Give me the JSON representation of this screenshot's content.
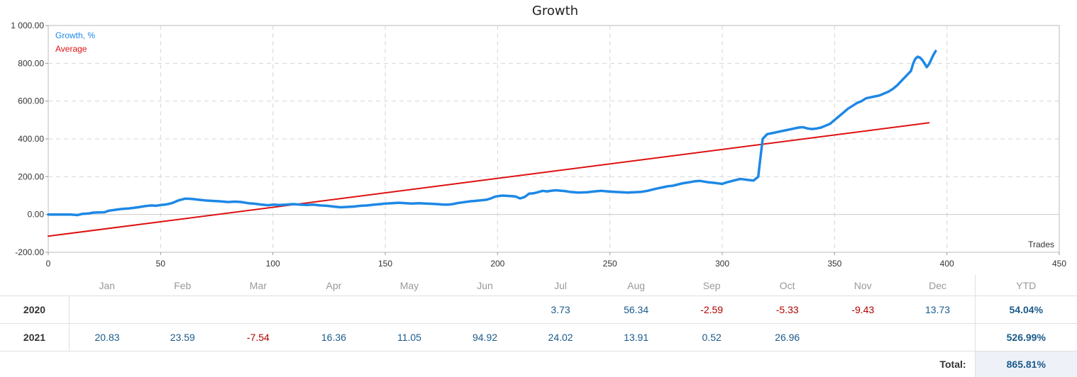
{
  "chart_data": {
    "type": "line",
    "title": "Growth",
    "xlabel": "Trades",
    "ylabel": "",
    "xlim": [
      0,
      450
    ],
    "ylim": [
      -200,
      1000
    ],
    "x_ticks": [
      0,
      50,
      100,
      150,
      200,
      250,
      300,
      350,
      400,
      450
    ],
    "y_ticks": [
      -200,
      0,
      200,
      400,
      600,
      800,
      1000
    ],
    "y_tick_labels": [
      "-200.00",
      "0.00",
      "200.00",
      "400.00",
      "600.00",
      "800.00",
      "1 000.00"
    ],
    "grid": true,
    "legend_position": "top-left",
    "series": [
      {
        "name": "Growth, %",
        "color": "#1e88e5",
        "points": [
          [
            0,
            0
          ],
          [
            5,
            0
          ],
          [
            10,
            0
          ],
          [
            13,
            -3
          ],
          [
            15,
            3
          ],
          [
            18,
            5
          ],
          [
            20,
            10
          ],
          [
            25,
            12
          ],
          [
            27,
            20
          ],
          [
            30,
            25
          ],
          [
            33,
            30
          ],
          [
            36,
            32
          ],
          [
            40,
            38
          ],
          [
            43,
            44
          ],
          [
            46,
            48
          ],
          [
            48,
            46
          ],
          [
            50,
            50
          ],
          [
            52,
            52
          ],
          [
            55,
            60
          ],
          [
            58,
            75
          ],
          [
            61,
            84
          ],
          [
            64,
            82
          ],
          [
            67,
            78
          ],
          [
            70,
            74
          ],
          [
            73,
            72
          ],
          [
            76,
            70
          ],
          [
            78,
            68
          ],
          [
            80,
            66
          ],
          [
            83,
            68
          ],
          [
            86,
            66
          ],
          [
            89,
            60
          ],
          [
            92,
            57
          ],
          [
            95,
            52
          ],
          [
            98,
            49
          ],
          [
            100,
            52
          ],
          [
            103,
            50
          ],
          [
            106,
            52
          ],
          [
            109,
            55
          ],
          [
            112,
            52
          ],
          [
            115,
            50
          ],
          [
            118,
            52
          ],
          [
            121,
            48
          ],
          [
            124,
            46
          ],
          [
            127,
            42
          ],
          [
            130,
            38
          ],
          [
            133,
            40
          ],
          [
            136,
            42
          ],
          [
            139,
            46
          ],
          [
            142,
            48
          ],
          [
            145,
            52
          ],
          [
            148,
            55
          ],
          [
            150,
            58
          ],
          [
            153,
            60
          ],
          [
            156,
            62
          ],
          [
            159,
            60
          ],
          [
            162,
            58
          ],
          [
            165,
            60
          ],
          [
            168,
            58
          ],
          [
            170,
            57
          ],
          [
            173,
            55
          ],
          [
            176,
            52
          ],
          [
            178,
            52
          ],
          [
            180,
            55
          ],
          [
            182,
            60
          ],
          [
            185,
            65
          ],
          [
            188,
            70
          ],
          [
            190,
            72
          ],
          [
            192,
            74
          ],
          [
            195,
            78
          ],
          [
            197,
            85
          ],
          [
            199,
            95
          ],
          [
            202,
            100
          ],
          [
            205,
            98
          ],
          [
            208,
            95
          ],
          [
            210,
            85
          ],
          [
            212,
            92
          ],
          [
            214,
            110
          ],
          [
            216,
            112
          ],
          [
            218,
            118
          ],
          [
            220,
            125
          ],
          [
            222,
            122
          ],
          [
            224,
            126
          ],
          [
            226,
            128
          ],
          [
            228,
            126
          ],
          [
            230,
            124
          ],
          [
            232,
            120
          ],
          [
            234,
            118
          ],
          [
            236,
            116
          ],
          [
            238,
            117
          ],
          [
            240,
            118
          ],
          [
            243,
            122
          ],
          [
            246,
            125
          ],
          [
            249,
            122
          ],
          [
            252,
            120
          ],
          [
            255,
            118
          ],
          [
            258,
            116
          ],
          [
            261,
            118
          ],
          [
            264,
            120
          ],
          [
            267,
            126
          ],
          [
            270,
            135
          ],
          [
            272,
            140
          ],
          [
            274,
            145
          ],
          [
            276,
            150
          ],
          [
            278,
            152
          ],
          [
            280,
            158
          ],
          [
            282,
            164
          ],
          [
            284,
            168
          ],
          [
            286,
            172
          ],
          [
            288,
            176
          ],
          [
            290,
            178
          ],
          [
            292,
            174
          ],
          [
            294,
            170
          ],
          [
            296,
            168
          ],
          [
            298,
            165
          ],
          [
            300,
            162
          ],
          [
            302,
            170
          ],
          [
            304,
            176
          ],
          [
            306,
            182
          ],
          [
            308,
            188
          ],
          [
            310,
            185
          ],
          [
            312,
            182
          ],
          [
            314,
            180
          ],
          [
            316,
            200
          ],
          [
            317,
            300
          ],
          [
            318,
            400
          ],
          [
            320,
            425
          ],
          [
            322,
            430
          ],
          [
            324,
            435
          ],
          [
            326,
            440
          ],
          [
            328,
            445
          ],
          [
            330,
            450
          ],
          [
            332,
            455
          ],
          [
            334,
            460
          ],
          [
            336,
            462
          ],
          [
            338,
            455
          ],
          [
            340,
            452
          ],
          [
            342,
            455
          ],
          [
            344,
            460
          ],
          [
            346,
            470
          ],
          [
            348,
            480
          ],
          [
            350,
            500
          ],
          [
            352,
            520
          ],
          [
            354,
            540
          ],
          [
            356,
            560
          ],
          [
            358,
            575
          ],
          [
            360,
            590
          ],
          [
            362,
            600
          ],
          [
            364,
            615
          ],
          [
            366,
            620
          ],
          [
            368,
            625
          ],
          [
            370,
            630
          ],
          [
            372,
            640
          ],
          [
            374,
            650
          ],
          [
            376,
            665
          ],
          [
            378,
            685
          ],
          [
            380,
            710
          ],
          [
            382,
            735
          ],
          [
            384,
            760
          ],
          [
            385,
            800
          ],
          [
            386,
            825
          ],
          [
            387,
            835
          ],
          [
            388,
            830
          ],
          [
            389,
            818
          ],
          [
            390,
            800
          ],
          [
            391,
            780
          ],
          [
            392,
            795
          ],
          [
            393,
            820
          ],
          [
            394,
            845
          ],
          [
            395,
            865
          ]
        ]
      },
      {
        "name": "Average",
        "color": "#dd1111",
        "points": [
          [
            0,
            -115
          ],
          [
            392,
            485
          ]
        ]
      }
    ]
  },
  "table": {
    "headers": [
      "",
      "Jan",
      "Feb",
      "Mar",
      "Apr",
      "May",
      "Jun",
      "Jul",
      "Aug",
      "Sep",
      "Oct",
      "Nov",
      "Dec",
      "YTD"
    ],
    "rows": [
      {
        "year": "2020",
        "months": [
          "",
          "",
          "",
          "",
          "",
          "",
          "3.73",
          "56.34",
          "-2.59",
          "-5.33",
          "-9.43",
          "13.73"
        ],
        "ytd": "54.04%"
      },
      {
        "year": "2021",
        "months": [
          "20.83",
          "23.59",
          "-7.54",
          "16.36",
          "11.05",
          "94.92",
          "24.02",
          "13.91",
          "0.52",
          "26.96",
          "",
          ""
        ],
        "ytd": "526.99%"
      }
    ],
    "total_label": "Total:",
    "total_value": "865.81%"
  }
}
